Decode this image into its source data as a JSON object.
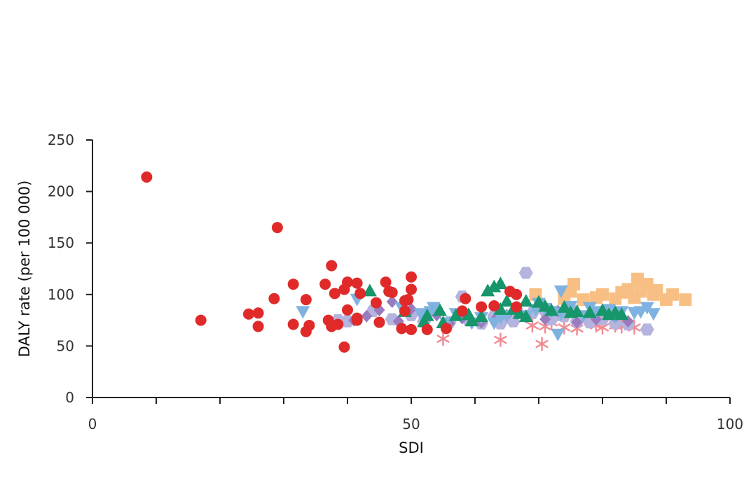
{
  "chart_data": {
    "type": "scatter",
    "xlabel": "SDI",
    "ylabel": "DALY rate (per 100 000)",
    "xlim": [
      0,
      100
    ],
    "ylim": [
      0,
      250
    ],
    "x_ticks": [
      0,
      50,
      100
    ],
    "x_minor_ticks": [
      10,
      20,
      30,
      40,
      60,
      70,
      80,
      90
    ],
    "y_ticks": [
      0,
      50,
      100,
      150,
      200,
      250
    ],
    "grid": false,
    "legend": "none",
    "series": [
      {
        "marker": "circle",
        "color": "#e02a2a",
        "points": [
          [
            8.5,
            214
          ],
          [
            17,
            75
          ],
          [
            24.5,
            81
          ],
          [
            26,
            82
          ],
          [
            26,
            69
          ],
          [
            28.5,
            96
          ],
          [
            29,
            165
          ],
          [
            31.5,
            110
          ],
          [
            31.5,
            71
          ],
          [
            33.5,
            64
          ],
          [
            33.5,
            95
          ],
          [
            34,
            70
          ],
          [
            36.5,
            110
          ],
          [
            37,
            75
          ],
          [
            37.5,
            69
          ],
          [
            37.5,
            128
          ],
          [
            38,
            101
          ],
          [
            38.5,
            71
          ],
          [
            39.5,
            49
          ],
          [
            39.5,
            105
          ],
          [
            40,
            112
          ],
          [
            40,
            85
          ],
          [
            41.5,
            111
          ],
          [
            41.5,
            77
          ],
          [
            41.5,
            75
          ],
          [
            42,
            101
          ],
          [
            44.5,
            92
          ],
          [
            45,
            73
          ],
          [
            46,
            112
          ],
          [
            46.5,
            103
          ],
          [
            47,
            102
          ],
          [
            48.5,
            67
          ],
          [
            49,
            94
          ],
          [
            49,
            84
          ],
          [
            49.5,
            95
          ],
          [
            50,
            117
          ],
          [
            50,
            105
          ],
          [
            50,
            66
          ],
          [
            52.5,
            66
          ],
          [
            55.5,
            67
          ],
          [
            58,
            84
          ],
          [
            58.5,
            96
          ],
          [
            61,
            88
          ],
          [
            63,
            89
          ],
          [
            65.5,
            103
          ],
          [
            66.5,
            100
          ],
          [
            66.5,
            88
          ]
        ]
      },
      {
        "marker": "triangle-down",
        "color": "#7fb2e0",
        "points": [
          [
            33,
            84
          ],
          [
            41.5,
            96
          ],
          [
            48.5,
            88
          ],
          [
            51.5,
            82
          ],
          [
            53,
            84
          ],
          [
            53.5,
            88
          ],
          [
            55.5,
            73
          ],
          [
            57,
            82
          ],
          [
            59.5,
            73
          ],
          [
            61,
            78
          ],
          [
            63,
            73
          ],
          [
            64,
            78
          ],
          [
            65,
            80
          ],
          [
            66.5,
            82
          ],
          [
            68,
            80
          ],
          [
            69.5,
            86
          ],
          [
            70,
            92
          ],
          [
            71,
            87
          ],
          [
            72,
            84
          ],
          [
            73,
            62
          ],
          [
            73.5,
            82
          ],
          [
            73.5,
            104
          ],
          [
            75,
            89
          ],
          [
            77,
            80
          ],
          [
            78,
            88
          ],
          [
            79,
            84
          ],
          [
            80.5,
            82
          ],
          [
            81,
            86
          ],
          [
            82,
            79
          ],
          [
            83,
            84
          ],
          [
            85,
            83
          ],
          [
            86,
            84
          ],
          [
            87,
            88
          ],
          [
            88,
            82
          ]
        ]
      },
      {
        "marker": "triangle-up",
        "color": "#16966a",
        "points": [
          [
            43.5,
            103
          ],
          [
            49,
            83
          ],
          [
            52,
            73
          ],
          [
            52.5,
            79
          ],
          [
            54.5,
            84
          ],
          [
            55,
            72
          ],
          [
            57,
            79
          ],
          [
            59,
            80
          ],
          [
            59.5,
            74
          ],
          [
            61,
            78
          ],
          [
            62,
            103
          ],
          [
            63,
            107
          ],
          [
            64,
            85
          ],
          [
            64,
            110
          ],
          [
            65,
            93
          ],
          [
            66,
            85
          ],
          [
            67,
            81
          ],
          [
            68,
            93
          ],
          [
            68,
            78
          ],
          [
            70,
            92
          ],
          [
            71,
            88
          ],
          [
            72,
            84
          ],
          [
            74,
            87
          ],
          [
            75,
            82
          ],
          [
            76,
            83
          ],
          [
            78,
            82
          ],
          [
            80,
            84
          ],
          [
            81,
            80
          ],
          [
            82,
            82
          ],
          [
            83,
            80
          ]
        ]
      },
      {
        "marker": "diamond",
        "color": "#9b7bbf",
        "points": [
          [
            41,
            75
          ],
          [
            43,
            79
          ],
          [
            45,
            85
          ],
          [
            47,
            93
          ],
          [
            48,
            74
          ],
          [
            50,
            86
          ],
          [
            52,
            78
          ],
          [
            54,
            80
          ],
          [
            56,
            72
          ],
          [
            58,
            77
          ],
          [
            61,
            73
          ],
          [
            63,
            75
          ],
          [
            65,
            80
          ],
          [
            68,
            78
          ],
          [
            71,
            76
          ],
          [
            73,
            84
          ],
          [
            76,
            73
          ],
          [
            79,
            76
          ],
          [
            82,
            78
          ],
          [
            84,
            74
          ]
        ]
      },
      {
        "marker": "hexagon",
        "color": "#b4b4de",
        "points": [
          [
            38.5,
            75
          ],
          [
            40,
            74
          ],
          [
            44,
            84
          ],
          [
            47,
            76
          ],
          [
            50,
            80
          ],
          [
            52,
            74
          ],
          [
            56,
            73
          ],
          [
            58,
            98
          ],
          [
            59,
            75
          ],
          [
            61,
            72
          ],
          [
            63,
            79
          ],
          [
            64,
            72
          ],
          [
            66,
            74
          ],
          [
            68,
            121
          ],
          [
            69,
            82
          ],
          [
            70,
            88
          ],
          [
            71,
            84
          ],
          [
            72,
            82
          ],
          [
            72,
            76
          ],
          [
            73,
            80
          ],
          [
            74,
            79
          ],
          [
            75,
            86
          ],
          [
            76,
            74
          ],
          [
            78,
            73
          ],
          [
            80,
            76
          ],
          [
            82,
            72
          ],
          [
            84,
            71
          ],
          [
            87,
            66
          ]
        ]
      },
      {
        "marker": "asterisk",
        "color": "#f08c95",
        "points": [
          [
            55,
            57
          ],
          [
            64,
            56
          ],
          [
            69,
            70
          ],
          [
            70.5,
            52
          ],
          [
            71,
            69
          ],
          [
            72,
            73
          ],
          [
            74,
            68
          ],
          [
            76,
            67
          ],
          [
            79,
            70
          ],
          [
            80,
            68
          ],
          [
            82,
            70
          ],
          [
            83,
            69
          ],
          [
            84,
            72
          ],
          [
            85,
            68
          ]
        ]
      },
      {
        "marker": "square",
        "color": "#f8bf84",
        "points": [
          [
            69.5,
            100
          ],
          [
            74,
            96
          ],
          [
            75,
            103
          ],
          [
            75.5,
            110
          ],
          [
            77,
            95
          ],
          [
            79,
            97
          ],
          [
            80,
            100
          ],
          [
            82,
            96
          ],
          [
            83,
            102
          ],
          [
            84,
            105
          ],
          [
            85,
            97
          ],
          [
            85.5,
            115
          ],
          [
            86,
            103
          ],
          [
            87,
            110
          ],
          [
            88,
            100
          ],
          [
            88.5,
            104
          ],
          [
            90,
            95
          ],
          [
            91,
            100
          ],
          [
            93,
            95
          ]
        ]
      }
    ]
  }
}
